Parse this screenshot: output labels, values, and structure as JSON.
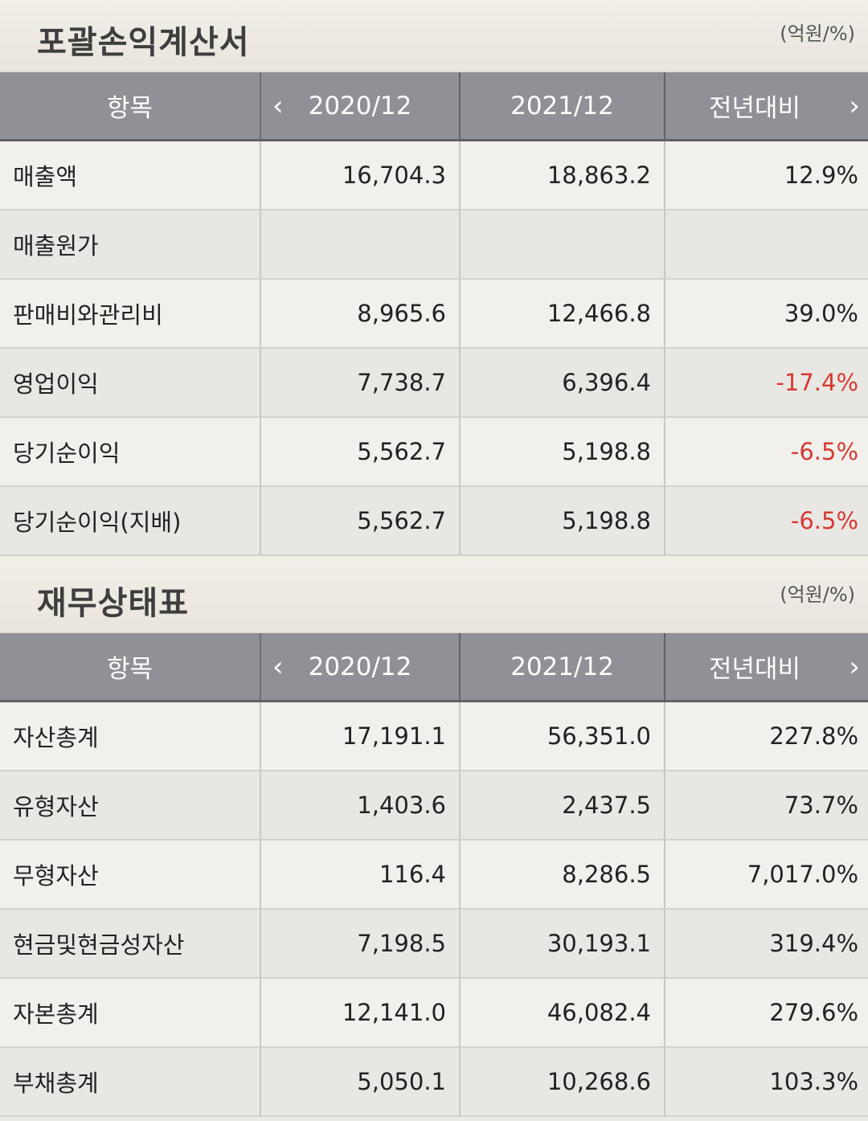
{
  "income": {
    "title": "포괄손익계산서",
    "unit": "(억원/%)",
    "headers": {
      "item": "항목",
      "y1": "2020/12",
      "y2": "2021/12",
      "chg": "전년대비"
    },
    "rows": [
      {
        "label": "매출액",
        "y1": "16,704.3",
        "y2": "18,863.2",
        "chg": "12.9%"
      },
      {
        "label": "매출원가",
        "y1": "",
        "y2": "",
        "chg": ""
      },
      {
        "label": "판매비와관리비",
        "y1": "8,965.6",
        "y2": "12,466.8",
        "chg": "39.0%"
      },
      {
        "label": "영업이익",
        "y1": "7,738.7",
        "y2": "6,396.4",
        "chg": "-17.4%"
      },
      {
        "label": "당기순이익",
        "y1": "5,562.7",
        "y2": "5,198.8",
        "chg": "-6.5%"
      },
      {
        "label": "당기순이익(지배)",
        "y1": "5,562.7",
        "y2": "5,198.8",
        "chg": "-6.5%"
      }
    ]
  },
  "balance": {
    "title": "재무상태표",
    "unit": "(억원/%)",
    "headers": {
      "item": "항목",
      "y1": "2020/12",
      "y2": "2021/12",
      "chg": "전년대비"
    },
    "rows": [
      {
        "label": "자산총계",
        "y1": "17,191.1",
        "y2": "56,351.0",
        "chg": "227.8%"
      },
      {
        "label": "유형자산",
        "y1": "1,403.6",
        "y2": "2,437.5",
        "chg": "73.7%"
      },
      {
        "label": "무형자산",
        "y1": "116.4",
        "y2": "8,286.5",
        "chg": "7,017.0%"
      },
      {
        "label": "현금및현금성자산",
        "y1": "7,198.5",
        "y2": "30,193.1",
        "chg": "319.4%"
      },
      {
        "label": "자본총계",
        "y1": "12,141.0",
        "y2": "46,082.4",
        "chg": "279.6%"
      },
      {
        "label": "부채총계",
        "y1": "5,050.1",
        "y2": "10,268.6",
        "chg": "103.3%"
      }
    ]
  },
  "icons": {
    "prev": "chevron-left-icon",
    "next": "chevron-right-icon"
  },
  "colors": {
    "negative": "#d63a33",
    "header_bg": "#8f9196"
  }
}
